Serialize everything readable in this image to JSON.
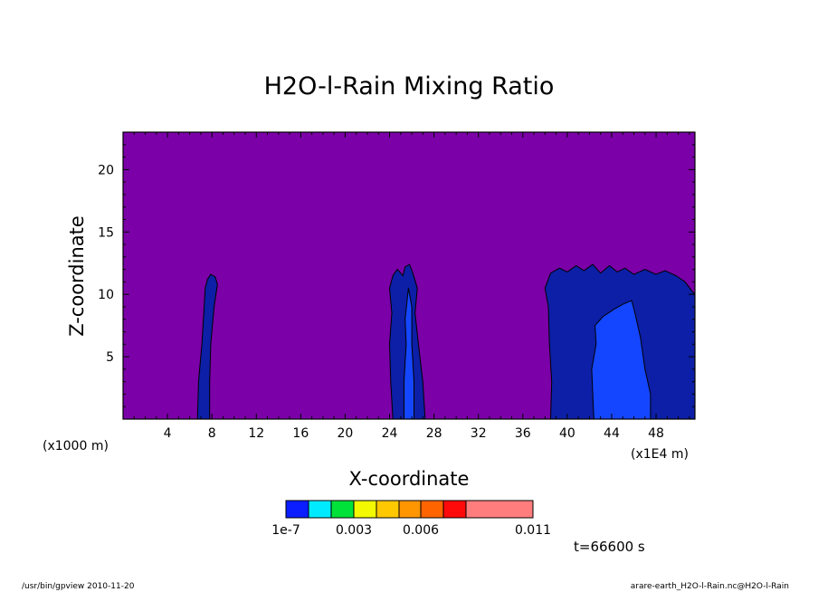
{
  "chart_data": {
    "type": "heatmap",
    "title": "H2O-l-Rain Mixing Ratio",
    "xlabel": "X-coordinate",
    "ylabel": "Z-coordinate",
    "x_unit_left": "(x1000 m)",
    "x_unit_right": "(x1E4 m)",
    "xlim": [
      0,
      51.5
    ],
    "ylim": [
      0,
      23
    ],
    "x_ticks": [
      4,
      8,
      12,
      16,
      20,
      24,
      28,
      32,
      36,
      40,
      44,
      48
    ],
    "y_ticks": [
      5,
      10,
      15,
      20
    ],
    "background_color": "#7b00a8",
    "colorbar": {
      "colors": [
        "#0a1eff",
        "#00eaff",
        "#00e13a",
        "#f3f900",
        "#ffc800",
        "#ff9600",
        "#ff6400",
        "#ff0a0a",
        "#ff7d7d"
      ],
      "labels": [
        {
          "value": 1e-07,
          "text": "1e-7"
        },
        {
          "value": 0.003,
          "text": "0.003"
        },
        {
          "value": 0.006,
          "text": "0.006"
        },
        {
          "value": 0.011,
          "text": "0.011"
        }
      ]
    },
    "features": [
      {
        "name": "cell-near-8",
        "level": "low",
        "outline": [
          [
            6.7,
            0
          ],
          [
            6.8,
            3
          ],
          [
            7.1,
            6
          ],
          [
            7.3,
            9
          ],
          [
            7.4,
            10.5
          ],
          [
            7.6,
            11.2
          ],
          [
            7.9,
            11.6
          ],
          [
            8.3,
            11.4
          ],
          [
            8.5,
            10.8
          ],
          [
            8.2,
            9
          ],
          [
            7.9,
            6
          ],
          [
            7.8,
            3
          ],
          [
            7.8,
            0
          ]
        ]
      },
      {
        "name": "cell-near-25",
        "level": "low",
        "outline": [
          [
            24.3,
            0
          ],
          [
            24.1,
            3
          ],
          [
            24.0,
            6
          ],
          [
            24.2,
            8.5
          ],
          [
            24.0,
            10.5
          ],
          [
            24.3,
            11.5
          ],
          [
            24.7,
            12.0
          ],
          [
            25.2,
            11.5
          ],
          [
            25.4,
            12.2
          ],
          [
            25.8,
            12.4
          ],
          [
            26.1,
            11.7
          ],
          [
            26.5,
            10.5
          ],
          [
            26.3,
            8.5
          ],
          [
            26.6,
            6
          ],
          [
            27.0,
            3
          ],
          [
            27.2,
            0
          ]
        ]
      },
      {
        "name": "cell-near-25-core",
        "level": "mid",
        "outline": [
          [
            25.3,
            0
          ],
          [
            25.3,
            3
          ],
          [
            25.5,
            6
          ],
          [
            25.4,
            8
          ],
          [
            25.7,
            10.5
          ],
          [
            26.0,
            9
          ],
          [
            26.0,
            6
          ],
          [
            26.2,
            3
          ],
          [
            26.2,
            0
          ]
        ]
      },
      {
        "name": "cell-near-44",
        "level": "low",
        "outline": [
          [
            38.5,
            0
          ],
          [
            38.6,
            3
          ],
          [
            38.4,
            6
          ],
          [
            38.3,
            9
          ],
          [
            38.0,
            10.5
          ],
          [
            38.5,
            11.7
          ],
          [
            39.3,
            12.1
          ],
          [
            40.0,
            11.8
          ],
          [
            40.8,
            12.3
          ],
          [
            41.5,
            11.9
          ],
          [
            42.3,
            12.4
          ],
          [
            43.0,
            11.7
          ],
          [
            43.8,
            12.3
          ],
          [
            44.5,
            11.8
          ],
          [
            45.2,
            12.1
          ],
          [
            46.0,
            11.6
          ],
          [
            47.0,
            12.0
          ],
          [
            48.0,
            11.6
          ],
          [
            48.8,
            11.9
          ],
          [
            49.8,
            11.5
          ],
          [
            50.6,
            11.0
          ],
          [
            51.3,
            10.2
          ],
          [
            51.5,
            10.0
          ],
          [
            51.5,
            0
          ]
        ]
      },
      {
        "name": "cell-near-44-core",
        "level": "mid",
        "outline": [
          [
            42.4,
            0
          ],
          [
            42.3,
            2
          ],
          [
            42.2,
            4
          ],
          [
            42.6,
            6
          ],
          [
            42.5,
            7.5
          ],
          [
            43.2,
            8.2
          ],
          [
            44.2,
            8.8
          ],
          [
            45.0,
            9.2
          ],
          [
            45.8,
            9.5
          ],
          [
            46.1,
            8.5
          ],
          [
            46.6,
            6.5
          ],
          [
            47.0,
            4
          ],
          [
            47.5,
            2
          ],
          [
            47.5,
            0
          ]
        ]
      }
    ],
    "annotation": "t=66600 s"
  },
  "footer": {
    "left": "/usr/bin/gpview   2010-11-20",
    "right": "arare-earth_H2O-l-Rain.nc@H2O-l-Rain"
  }
}
